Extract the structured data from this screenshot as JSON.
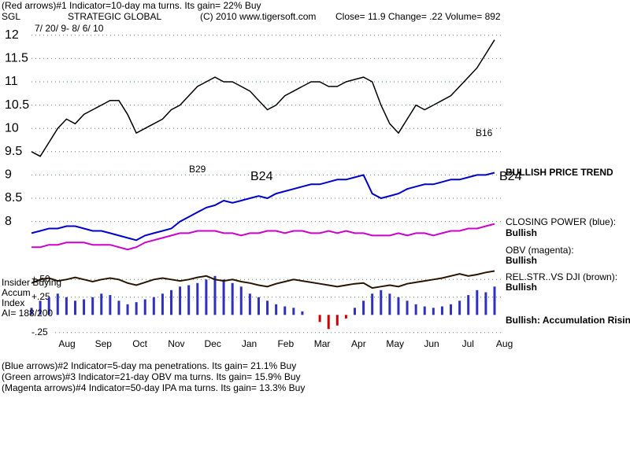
{
  "header": {
    "line1": "(Red arrows)#1 Indicator=10-day ma turns. Its gain= 22% Buy",
    "symbol": "SGL",
    "name": "STRATEGIC GLOBAL",
    "copyright": "(C) 2010 www.tigersoft.com",
    "quote": "Close=  11.9  Change= .22 Volume= 892",
    "dates": "7/ 20/ 9-  8/ 6/ 10"
  },
  "chart_data": {
    "type": "line",
    "ylim": [
      7.2,
      12.3
    ],
    "yticks": [
      8,
      8.5,
      9,
      9.5,
      10,
      10.5,
      11,
      11.5,
      12
    ],
    "grid": true,
    "x_labels": [
      "Aug",
      "Sep",
      "Oct",
      "Nov",
      "Dec",
      "Jan",
      "Feb",
      "Mar",
      "Apr",
      "May",
      "Jun",
      "Jul",
      "Aug"
    ],
    "series": [
      {
        "name": "Price",
        "color": "#000000",
        "values": [
          9.5,
          9.4,
          9.7,
          10.0,
          10.2,
          10.1,
          10.3,
          10.4,
          10.5,
          10.6,
          10.6,
          10.3,
          9.9,
          10.0,
          10.1,
          10.2,
          10.4,
          10.5,
          10.7,
          10.9,
          11.0,
          11.1,
          11.0,
          11.0,
          10.9,
          10.8,
          10.6,
          10.4,
          10.5,
          10.7,
          10.8,
          10.9,
          11.0,
          11.0,
          10.9,
          10.9,
          11.0,
          11.05,
          11.1,
          11.0,
          10.5,
          10.1,
          9.9,
          10.2,
          10.5,
          10.4,
          10.5,
          10.6,
          10.7,
          10.9,
          11.1,
          11.3,
          11.6,
          11.9
        ]
      },
      {
        "name": "CLOSING POWER (blue):",
        "color": "#0000cc",
        "values": [
          7.75,
          7.8,
          7.85,
          7.85,
          7.9,
          7.9,
          7.85,
          7.8,
          7.8,
          7.75,
          7.7,
          7.65,
          7.6,
          7.7,
          7.75,
          7.8,
          7.85,
          8.0,
          8.1,
          8.2,
          8.3,
          8.35,
          8.45,
          8.4,
          8.45,
          8.5,
          8.55,
          8.5,
          8.6,
          8.65,
          8.7,
          8.75,
          8.8,
          8.8,
          8.85,
          8.9,
          8.9,
          8.95,
          9.0,
          8.6,
          8.5,
          8.55,
          8.6,
          8.7,
          8.75,
          8.8,
          8.8,
          8.85,
          8.9,
          8.9,
          8.95,
          9.0,
          9.0,
          9.05
        ]
      },
      {
        "name": "OBV (magenta):",
        "color": "#cc00cc",
        "values": [
          7.45,
          7.45,
          7.5,
          7.5,
          7.55,
          7.55,
          7.55,
          7.5,
          7.5,
          7.5,
          7.45,
          7.4,
          7.45,
          7.55,
          7.6,
          7.65,
          7.7,
          7.75,
          7.75,
          7.8,
          7.8,
          7.8,
          7.75,
          7.75,
          7.7,
          7.75,
          7.75,
          7.8,
          7.8,
          7.75,
          7.8,
          7.8,
          7.75,
          7.75,
          7.8,
          7.75,
          7.8,
          7.75,
          7.75,
          7.7,
          7.7,
          7.7,
          7.75,
          7.7,
          7.75,
          7.75,
          7.7,
          7.75,
          7.8,
          7.8,
          7.85,
          7.85,
          7.9,
          7.95
        ]
      }
    ],
    "panel": {
      "ylim": [
        -0.33,
        0.67
      ],
      "yticks": [
        {
          "value": 0.5,
          "label": "+.50"
        },
        {
          "value": 0.25,
          "label": "+.25"
        },
        {
          "value": -0.25,
          "label": "-.25"
        }
      ],
      "relstr": {
        "name": "REL.STR..VS DJI (brown):",
        "color": "#2a1400",
        "values": [
          0.45,
          0.5,
          0.52,
          0.48,
          0.5,
          0.53,
          0.5,
          0.47,
          0.5,
          0.52,
          0.5,
          0.45,
          0.42,
          0.46,
          0.5,
          0.52,
          0.5,
          0.48,
          0.5,
          0.53,
          0.55,
          0.5,
          0.48,
          0.5,
          0.47,
          0.45,
          0.42,
          0.4,
          0.44,
          0.47,
          0.5,
          0.48,
          0.46,
          0.44,
          0.42,
          0.4,
          0.42,
          0.44,
          0.45,
          0.38,
          0.4,
          0.42,
          0.4,
          0.44,
          0.46,
          0.48,
          0.5,
          0.52,
          0.55,
          0.58,
          0.55,
          0.57,
          0.6,
          0.62
        ]
      },
      "accum": {
        "name": "Accum",
        "color": "#3030c0",
        "values": [
          0.1,
          0.2,
          0.25,
          0.3,
          0.25,
          0.2,
          0.22,
          0.25,
          0.3,
          0.28,
          0.2,
          0.15,
          0.18,
          0.22,
          0.25,
          0.3,
          0.35,
          0.4,
          0.42,
          0.45,
          0.5,
          0.55,
          0.5,
          0.45,
          0.4,
          0.3,
          0.25,
          0.2,
          0.15,
          0.12,
          0.1,
          0.05,
          0.0,
          -0.1,
          -0.2,
          -0.15,
          -0.05,
          0.1,
          0.2,
          0.3,
          0.35,
          0.3,
          0.25,
          0.2,
          0.15,
          0.12,
          0.1,
          0.12,
          0.15,
          0.2,
          0.28,
          0.35,
          0.32,
          0.4
        ]
      }
    },
    "annotations": [
      "B29",
      "B24",
      "B24",
      "B16"
    ],
    "side_labels": [
      "BULLISH PRICE TREND",
      "CLOSING POWER (blue):",
      "Bullish",
      "OBV (magenta):",
      "Bullish",
      "REL.STR..VS DJI (brown):",
      "Bullish",
      "Bullish: Accumulation Rising"
    ],
    "left_labels": [
      "Insider Buying",
      "Accum",
      "Index",
      "AI= 188/200"
    ]
  },
  "footer": [
    "(Blue arrows)#2 Indicator=5-day ma penetrations. Its gain= 21.1% Buy",
    "(Green arrows)#3 Indicator=21-day OBV ma turns. Its gain= 15.9% Buy",
    "(Magenta arrows)#4 Indicator=50-day IPA ma turns. Its gain= 13.3% Buy"
  ]
}
